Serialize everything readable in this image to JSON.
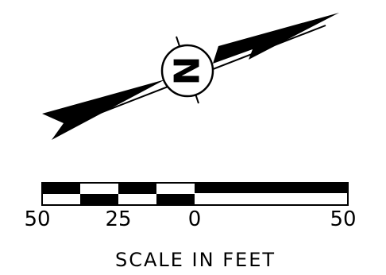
{
  "north_arrow": {
    "letter": "N"
  },
  "scale_bar": {
    "labels": [
      "50",
      "25",
      "0",
      "50"
    ],
    "caption": "SCALE IN FEET"
  },
  "colors": {
    "ink": "#000000",
    "paper": "#ffffff"
  }
}
